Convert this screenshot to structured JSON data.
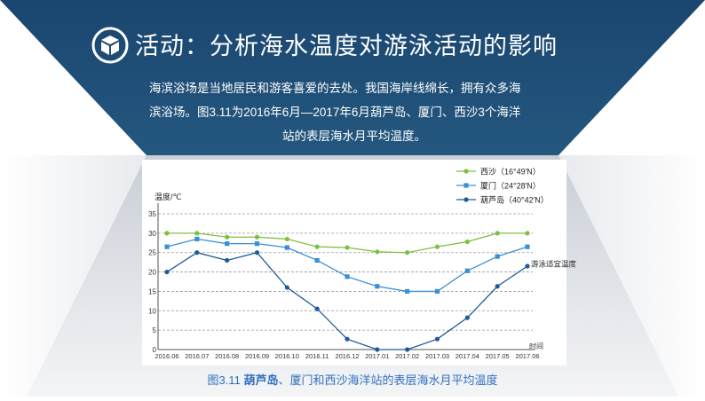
{
  "header": {
    "title": "活动：分析海水温度对游泳活动的影响",
    "intro_line1": "海滨浴场是当地居民和游客喜爱的去处。我国海岸线绵长，拥有众多海",
    "intro_line2": "滨浴场。图3.11为2016年6月—2017年6月葫芦岛、厦门、西沙3个海洋",
    "intro_line3": "站的表层海水月平均温度。",
    "icon": "cube-icon"
  },
  "colors": {
    "header_bg": "#1f4f7d",
    "accent": "#2f6fbf",
    "xisha": "#7cc041",
    "xiamen": "#3b8fd4",
    "huludao": "#1f5a9a"
  },
  "caption": {
    "prefix": "图3.11 ",
    "bold": "葫芦岛",
    "rest": "、厦门和西沙海洋站的表层海水月平均温度"
  },
  "chart_data": {
    "type": "line",
    "ylabel": "温度/℃",
    "xlabel": "时间",
    "ylim": [
      0,
      35
    ],
    "yticks": [
      0,
      5,
      10,
      15,
      20,
      25,
      30,
      35
    ],
    "grid": true,
    "legend_position": "top-right",
    "annotation": "游泳适宜温度",
    "annotation_value": 20,
    "categories": [
      "2016.06",
      "2016.07",
      "2016.08",
      "2016.09",
      "2016.10",
      "2016.11",
      "2016.12",
      "2017.01",
      "2017.02",
      "2017.03",
      "2017.04",
      "2017.05",
      "2017.06"
    ],
    "series": [
      {
        "name": "西沙（16°49′N）",
        "marker": "circle",
        "values": [
          30,
          30,
          29,
          29,
          28.5,
          26.5,
          26.3,
          25.2,
          25,
          26.5,
          27.8,
          30,
          30
        ]
      },
      {
        "name": "厦门（24°28′N）",
        "marker": "square",
        "values": [
          26.5,
          28.5,
          27.3,
          27.3,
          26.3,
          23,
          18.8,
          16.3,
          15,
          15,
          20.3,
          24,
          26.5
        ]
      },
      {
        "name": "葫芦岛（40°42′N）",
        "marker": "circle",
        "values": [
          20,
          25,
          23,
          25,
          16,
          10.5,
          2.7,
          0,
          0,
          2.7,
          8.2,
          16.3,
          21.5
        ]
      }
    ]
  }
}
